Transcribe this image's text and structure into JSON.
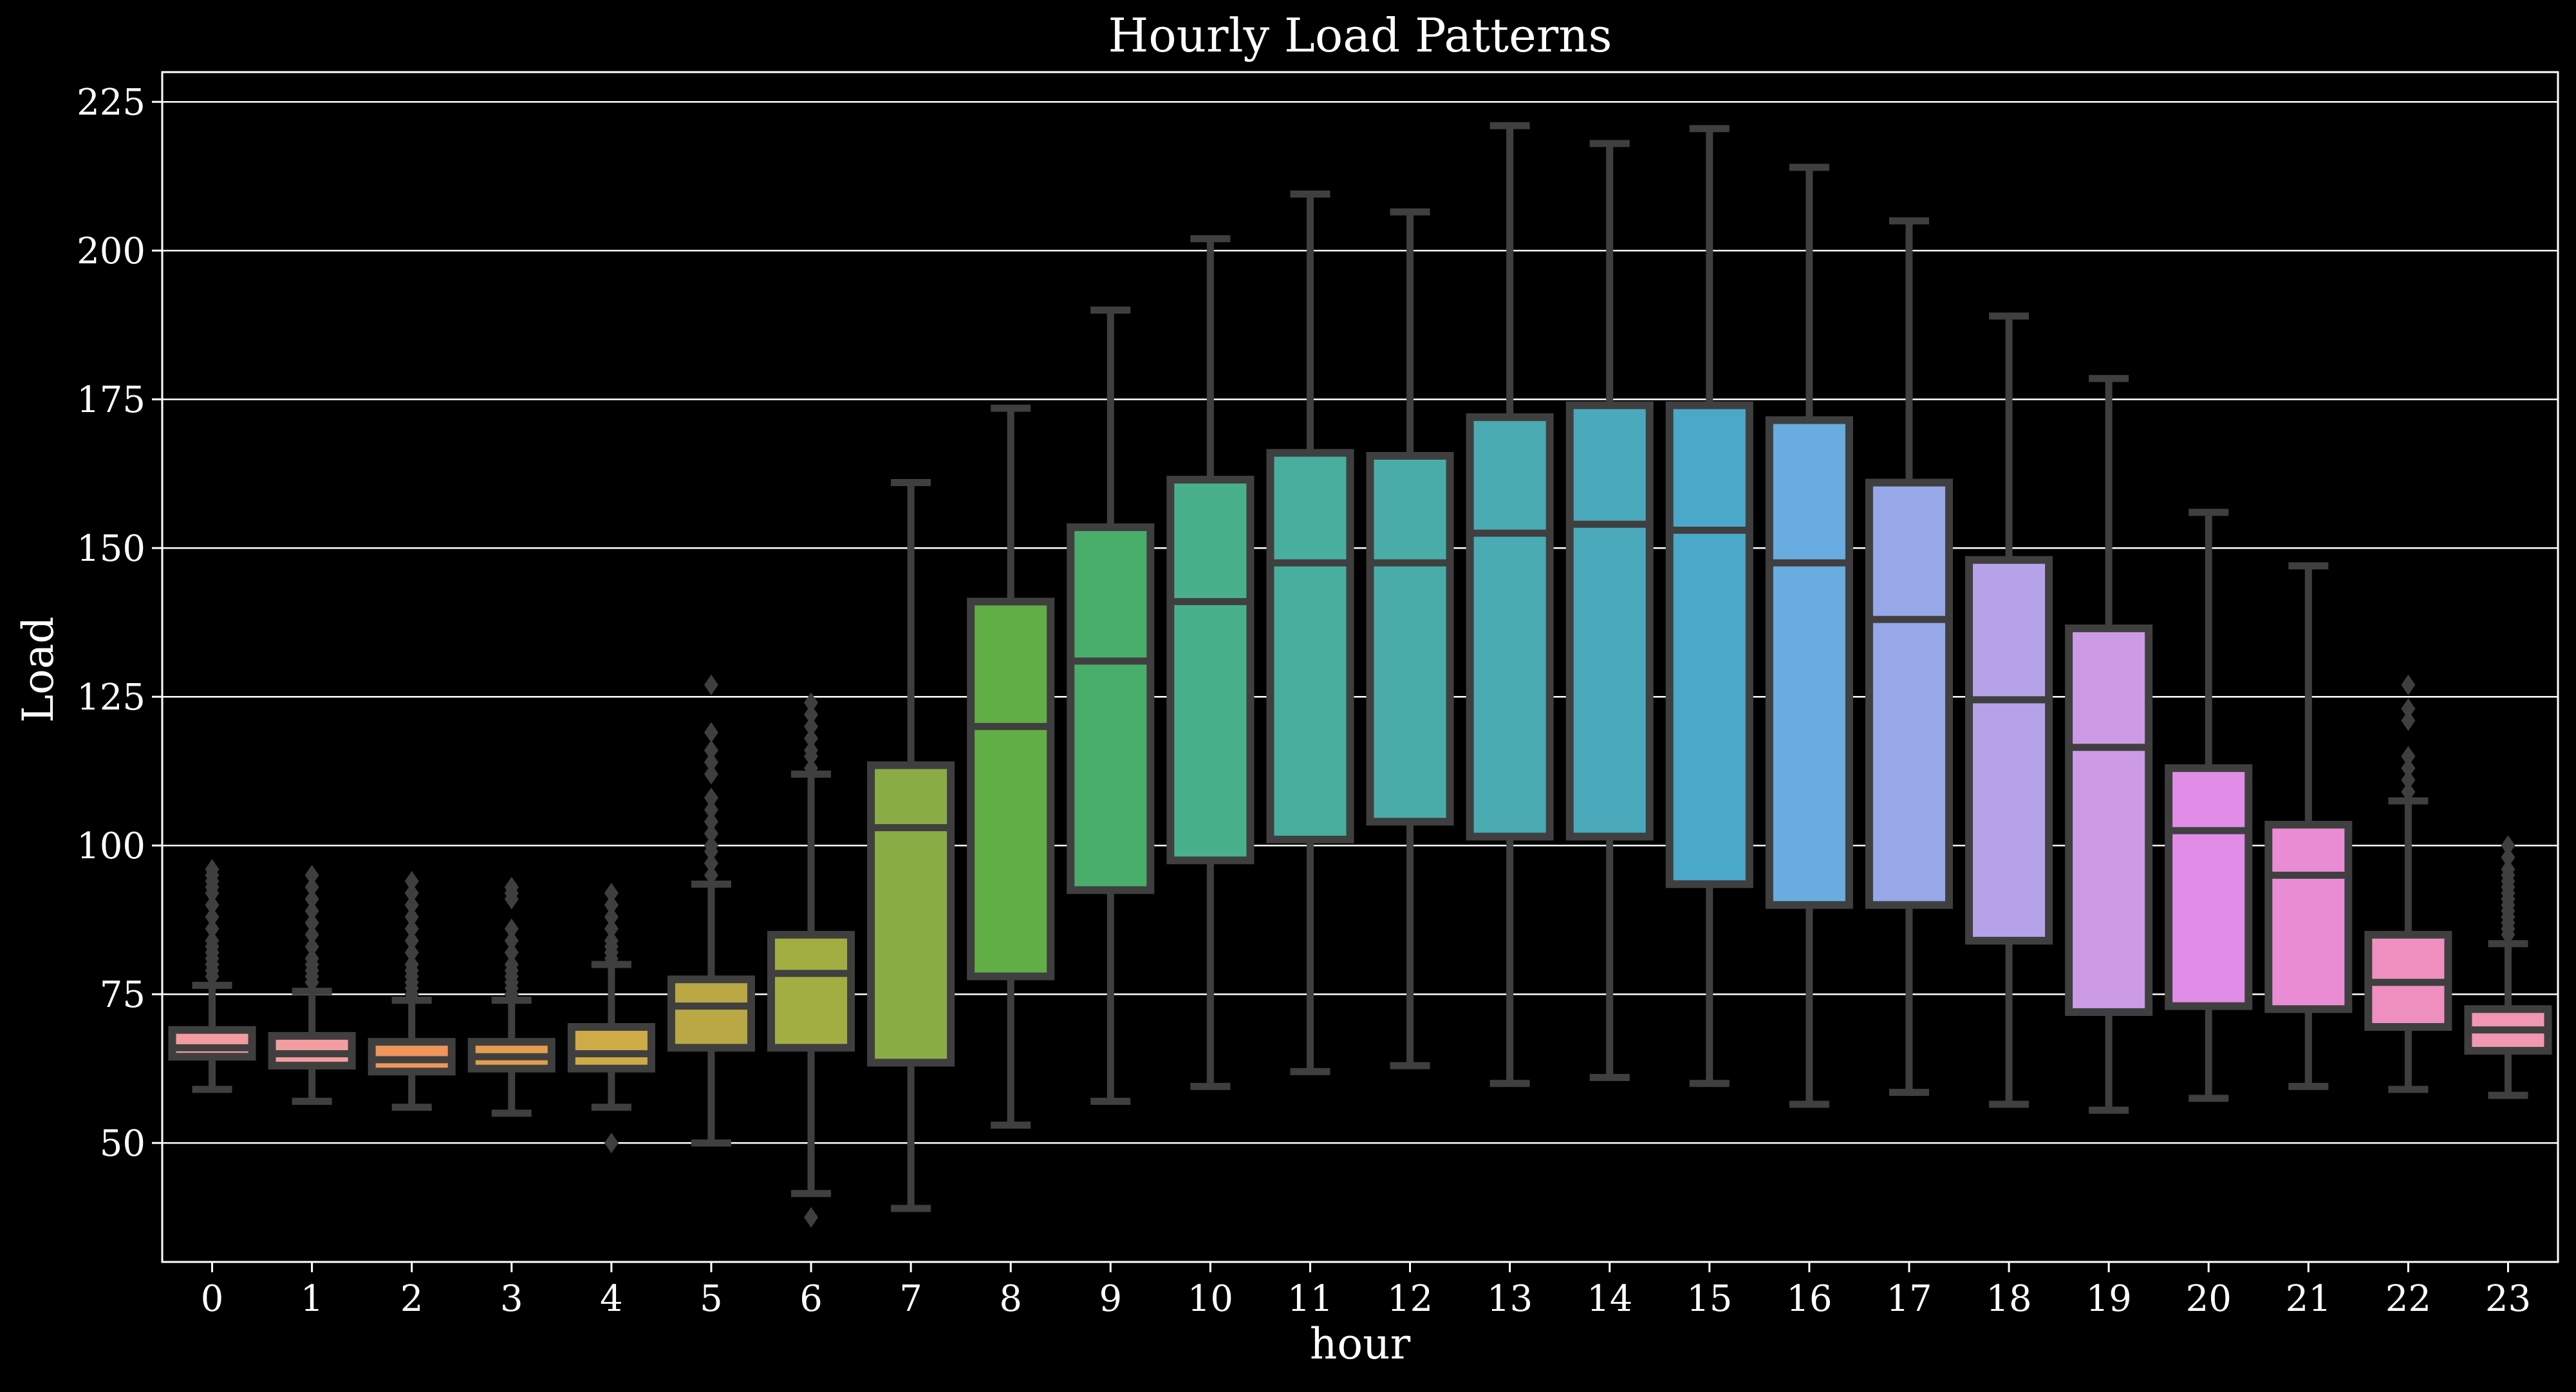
{
  "chart_data": {
    "type": "box",
    "title": "Hourly Load Patterns",
    "xlabel": "hour",
    "ylabel": "Load",
    "ylim": [
      30,
      230
    ],
    "yticks": [
      50,
      75,
      100,
      125,
      150,
      175,
      200,
      225
    ],
    "grid": "horizontal",
    "background": "#000000",
    "box_edge_color": "#3f3f3f",
    "categories": [
      "0",
      "1",
      "2",
      "3",
      "4",
      "5",
      "6",
      "7",
      "8",
      "9",
      "10",
      "11",
      "12",
      "13",
      "14",
      "15",
      "16",
      "17",
      "18",
      "19",
      "20",
      "21",
      "22",
      "23"
    ],
    "boxes": [
      {
        "hour": "0",
        "whislo": 59,
        "q1": 64.5,
        "med": 66,
        "q3": 69,
        "whishi": 76.5,
        "fliers": [
          78,
          79,
          80,
          81,
          82,
          83,
          84,
          86,
          88,
          90,
          92,
          93,
          94,
          95,
          96
        ],
        "color": "#f49aa1"
      },
      {
        "hour": "1",
        "whislo": 57,
        "q1": 63,
        "med": 65,
        "q3": 68,
        "whishi": 75.5,
        "fliers": [
          77,
          78,
          79,
          80,
          81,
          83,
          85,
          87,
          89,
          91,
          93,
          95
        ],
        "color": "#f49da0"
      },
      {
        "hour": "2",
        "whislo": 56,
        "q1": 62,
        "med": 64,
        "q3": 67,
        "whishi": 74,
        "fliers": [
          75,
          76,
          77,
          78,
          79,
          80,
          82,
          84,
          86,
          88,
          90,
          92,
          94
        ],
        "color": "#f0965b"
      },
      {
        "hour": "3",
        "whislo": 55,
        "q1": 62.5,
        "med": 64.5,
        "q3": 67,
        "whishi": 74,
        "fliers": [
          75,
          76,
          77,
          78,
          79,
          80,
          82,
          84,
          86,
          91,
          92,
          93
        ],
        "color": "#e39e4b"
      },
      {
        "hour": "4",
        "whislo": 56,
        "q1": 62.5,
        "med": 65,
        "q3": 69.5,
        "whishi": 80,
        "fliers": [
          50,
          81,
          82,
          83,
          84,
          86,
          88,
          90,
          92
        ],
        "color": "#ceab46"
      },
      {
        "hour": "5",
        "whislo": 50,
        "q1": 66,
        "med": 73,
        "q3": 77.5,
        "whishi": 93.5,
        "fliers": [
          95,
          97,
          99,
          100,
          102,
          104,
          106,
          108,
          112,
          114,
          116,
          119,
          127
        ],
        "color": "#b9a843"
      },
      {
        "hour": "6",
        "whislo": 41.5,
        "q1": 66,
        "med": 78.5,
        "q3": 85,
        "whishi": 112,
        "fliers": [
          37.5,
          113,
          115,
          116,
          118,
          120,
          122,
          124
        ],
        "color": "#a3ae42"
      },
      {
        "hour": "7",
        "whislo": 39,
        "q1": 63.5,
        "med": 103,
        "q3": 113.5,
        "whishi": 161,
        "fliers": [],
        "color": "#89ac45"
      },
      {
        "hour": "8",
        "whislo": 53,
        "q1": 78,
        "med": 120,
        "q3": 141,
        "whishi": 173.5,
        "fliers": [],
        "color": "#61ae46"
      },
      {
        "hour": "9",
        "whislo": 57,
        "q1": 92.5,
        "med": 131,
        "q3": 153.5,
        "whishi": 190,
        "fliers": [],
        "color": "#4aae6b"
      },
      {
        "hour": "10",
        "whislo": 59.5,
        "q1": 97.5,
        "med": 141,
        "q3": 161.5,
        "whishi": 202,
        "fliers": [],
        "color": "#49b08c"
      },
      {
        "hour": "11",
        "whislo": 62,
        "q1": 101,
        "med": 147.5,
        "q3": 166,
        "whishi": 209.5,
        "fliers": [],
        "color": "#48ae9e"
      },
      {
        "hour": "12",
        "whislo": 63,
        "q1": 104,
        "med": 147.5,
        "q3": 165.5,
        "whishi": 206.5,
        "fliers": [],
        "color": "#49aca9"
      },
      {
        "hour": "13",
        "whislo": 60,
        "q1": 101.5,
        "med": 152.5,
        "q3": 172,
        "whishi": 221,
        "fliers": [],
        "color": "#4aabb2"
      },
      {
        "hour": "14",
        "whislo": 61,
        "q1": 101.5,
        "med": 154,
        "q3": 174,
        "whishi": 218,
        "fliers": [],
        "color": "#4aaabb"
      },
      {
        "hour": "15",
        "whislo": 60,
        "q1": 93.5,
        "med": 153,
        "q3": 174,
        "whishi": 220.5,
        "fliers": [],
        "color": "#4aa9c8"
      },
      {
        "hour": "16",
        "whislo": 56.5,
        "q1": 90,
        "med": 147.5,
        "q3": 171.5,
        "whishi": 214,
        "fliers": [],
        "color": "#68ace0"
      },
      {
        "hour": "17",
        "whislo": 58.5,
        "q1": 90,
        "med": 138,
        "q3": 161,
        "whishi": 205,
        "fliers": [],
        "color": "#97a8e8"
      },
      {
        "hour": "18",
        "whislo": 56.5,
        "q1": 84,
        "med": 124.5,
        "q3": 148,
        "whishi": 189,
        "fliers": [],
        "color": "#b6a2e8"
      },
      {
        "hour": "19",
        "whislo": 55.5,
        "q1": 72,
        "med": 116.5,
        "q3": 136.5,
        "whishi": 178.5,
        "fliers": [],
        "color": "#cd9be6"
      },
      {
        "hour": "20",
        "whislo": 57.5,
        "q1": 73,
        "med": 102.5,
        "q3": 113,
        "whishi": 156,
        "fliers": [],
        "color": "#e18ce6"
      },
      {
        "hour": "21",
        "whislo": 59.5,
        "q1": 72.5,
        "med": 95,
        "q3": 103.5,
        "whishi": 147,
        "fliers": [],
        "color": "#e98cd4"
      },
      {
        "hour": "22",
        "whislo": 59,
        "q1": 69.5,
        "med": 77,
        "q3": 85,
        "whishi": 107.5,
        "fliers": [
          109,
          111,
          113,
          115,
          121,
          123,
          127
        ],
        "color": "#ef8fc0"
      },
      {
        "hour": "23",
        "whislo": 58,
        "q1": 65.5,
        "med": 69,
        "q3": 72.5,
        "whishi": 83.5,
        "fliers": [
          85,
          86,
          87,
          88,
          89,
          90,
          91,
          92,
          93,
          94,
          95,
          96,
          98,
          100
        ],
        "color": "#f197b1"
      }
    ]
  }
}
